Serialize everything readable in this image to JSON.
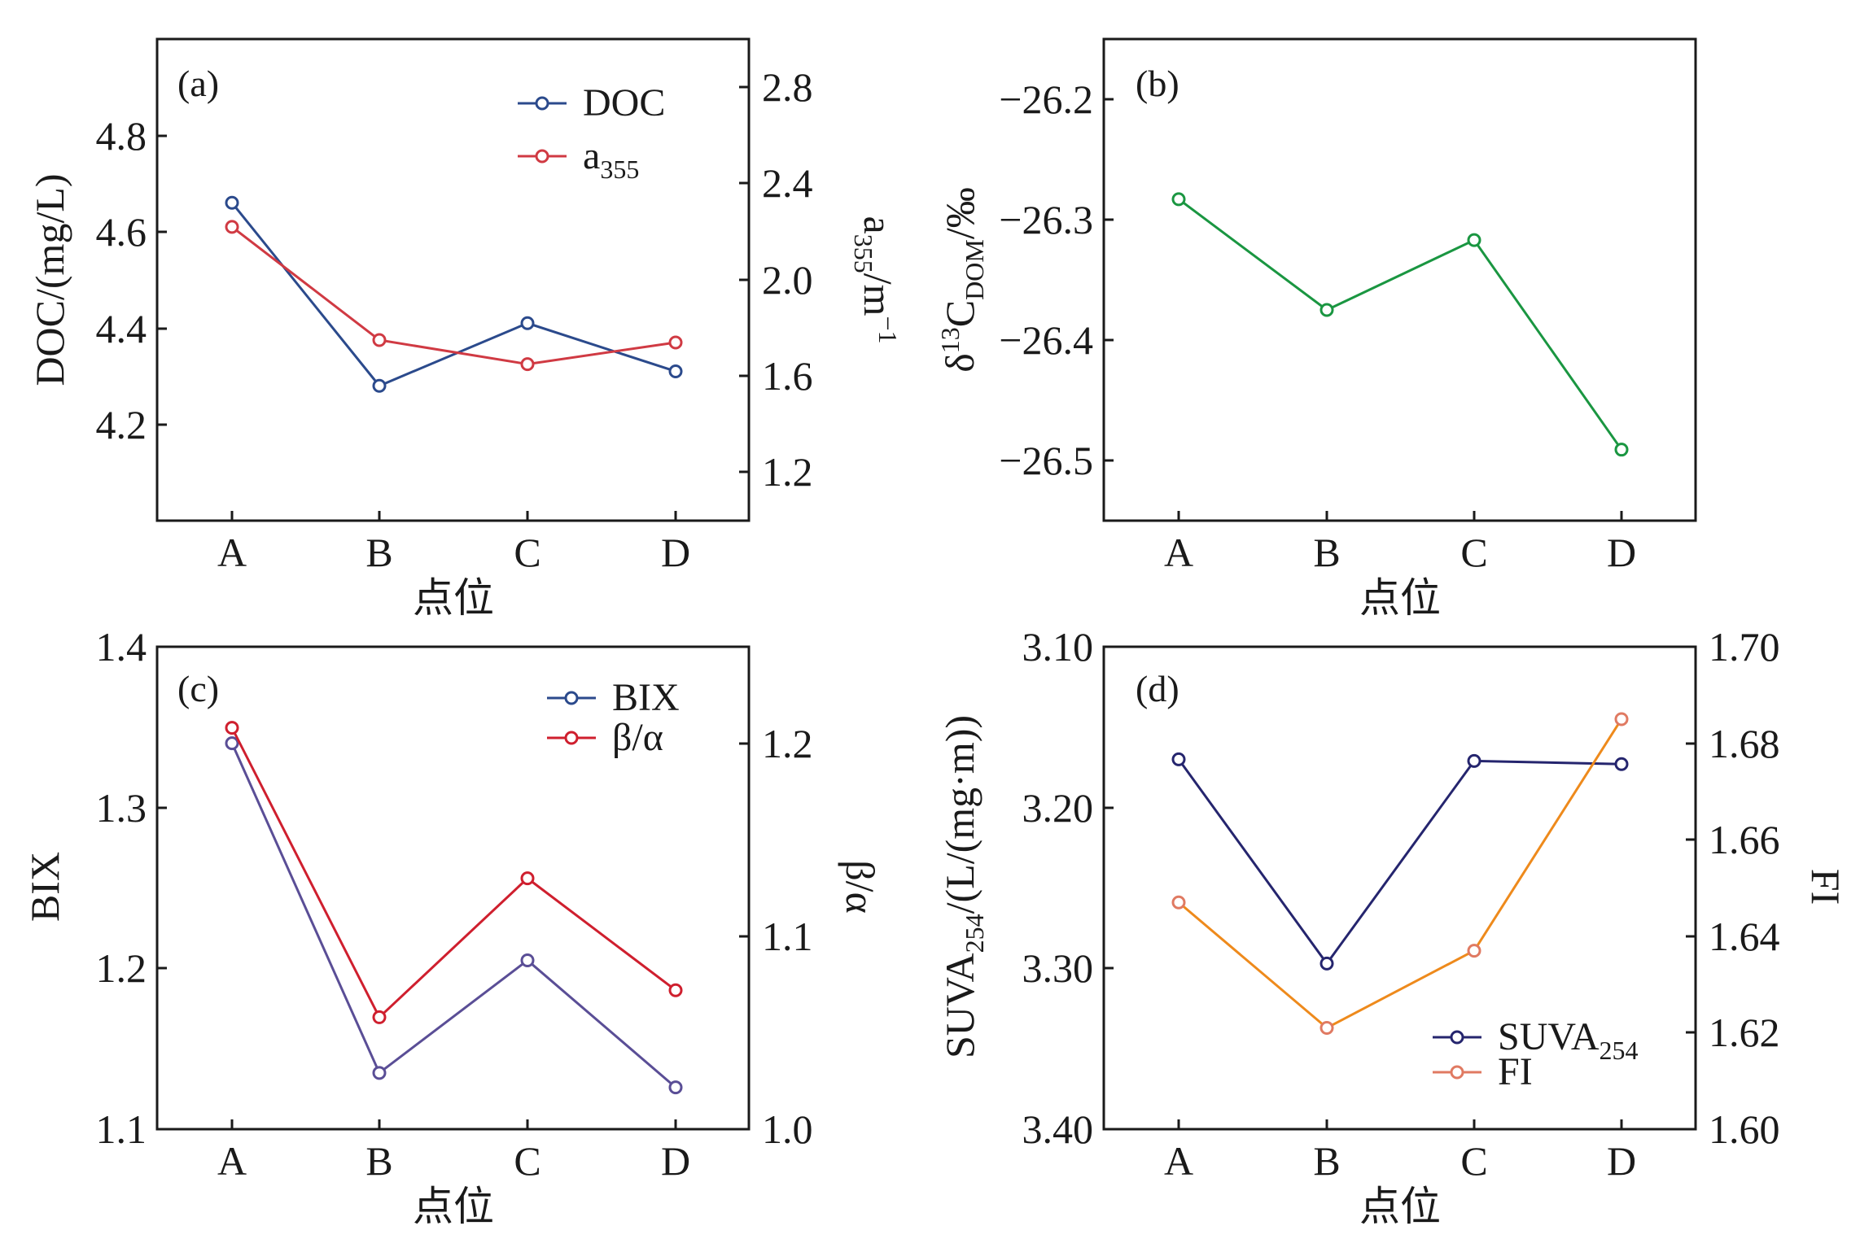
{
  "chart_data": [
    {
      "panel": "(a)",
      "type": "line",
      "categories": [
        "A",
        "B",
        "C",
        "D"
      ],
      "xlabel": "点位",
      "ylabel": "DOC/(mg/L)",
      "y2label_base": "a",
      "y2label_sub": "355",
      "y2label_tail": "/m",
      "y2label_sup": "−1",
      "ylim": [
        4.0,
        5.0
      ],
      "yticks": [
        "4.2",
        "4.4",
        "4.6",
        "4.8"
      ],
      "y2lim": [
        1.0,
        3.0
      ],
      "y2ticks": [
        "1.2",
        "1.6",
        "2.0",
        "2.4",
        "2.8"
      ],
      "series": [
        {
          "name": "DOC",
          "axis": "left",
          "color": "#2b4a8c",
          "values": [
            4.66,
            4.28,
            4.41,
            4.31
          ]
        },
        {
          "name_base": "a",
          "name_sub": "355",
          "axis": "right",
          "color": "#d03a43",
          "values": [
            2.22,
            1.75,
            1.65,
            1.74
          ]
        }
      ],
      "legend_labels": [
        "DOC",
        "a"
      ],
      "legend": "top-right"
    },
    {
      "panel": "(b)",
      "type": "line",
      "categories": [
        "A",
        "B",
        "C",
        "D"
      ],
      "xlabel": "点位",
      "ylabel_pre": "δ",
      "ylabel_sup": "13",
      "ylabel_c": "C",
      "ylabel_sub": "DOM",
      "ylabel_tail": "/‰",
      "ylim": [
        -26.55,
        -26.15
      ],
      "yticks": [
        "−26.2",
        "−26.3",
        "−26.4",
        "−26.5"
      ],
      "series": [
        {
          "name": "δ13C DOM",
          "axis": "left",
          "color": "#1a9641",
          "values": [
            -26.283,
            -26.375,
            -26.317,
            -26.491
          ]
        }
      ]
    },
    {
      "panel": "(c)",
      "type": "line",
      "categories": [
        "A",
        "B",
        "C",
        "D"
      ],
      "xlabel": "点位",
      "ylabel": "BIX",
      "y2label": "β/α",
      "ylim": [
        1.1,
        1.4
      ],
      "yticks": [
        "1.1",
        "1.2",
        "1.3",
        "1.4"
      ],
      "y2lim": [
        1.0,
        1.25
      ],
      "y2ticks": [
        "1.0",
        "1.1",
        "1.2"
      ],
      "series": [
        {
          "name": "BIX",
          "axis": "left",
          "color": "#5a4e96",
          "values": [
            1.34,
            1.135,
            1.205,
            1.126
          ]
        },
        {
          "name": "β/α",
          "axis": "right",
          "color": "#cf1f2e",
          "values": [
            1.208,
            1.058,
            1.13,
            1.072
          ]
        }
      ],
      "legend_labels": [
        "BIX",
        "β/α"
      ],
      "legend": "top-right"
    },
    {
      "panel": "(d)",
      "type": "line",
      "categories": [
        "A",
        "B",
        "C",
        "D"
      ],
      "xlabel": "点位",
      "ylabel_base": "SUVA",
      "ylabel_sub": "254",
      "ylabel_tail": "/(L/(mg·m))",
      "y2label": "FI",
      "ylim": [
        3.1,
        3.4
      ],
      "y_inverted": true,
      "yticks": [
        "3.10",
        "3.20",
        "3.30",
        "3.40"
      ],
      "y2lim": [
        1.6,
        1.7
      ],
      "y2ticks": [
        "1.60",
        "1.62",
        "1.64",
        "1.66",
        "1.68",
        "1.70"
      ],
      "series": [
        {
          "name_base": "SUVA",
          "name_sub": "254",
          "axis": "left",
          "color": "#25256e",
          "values": [
            3.17,
            3.297,
            3.171,
            3.173
          ]
        },
        {
          "name": "FI",
          "axis": "right",
          "color": "#ee8a1c",
          "marker_color": "#e07a62",
          "values": [
            1.647,
            1.621,
            1.637,
            1.685
          ]
        }
      ],
      "legend_labels": [
        "SUVA",
        "FI"
      ],
      "legend": "bottom-right"
    }
  ]
}
